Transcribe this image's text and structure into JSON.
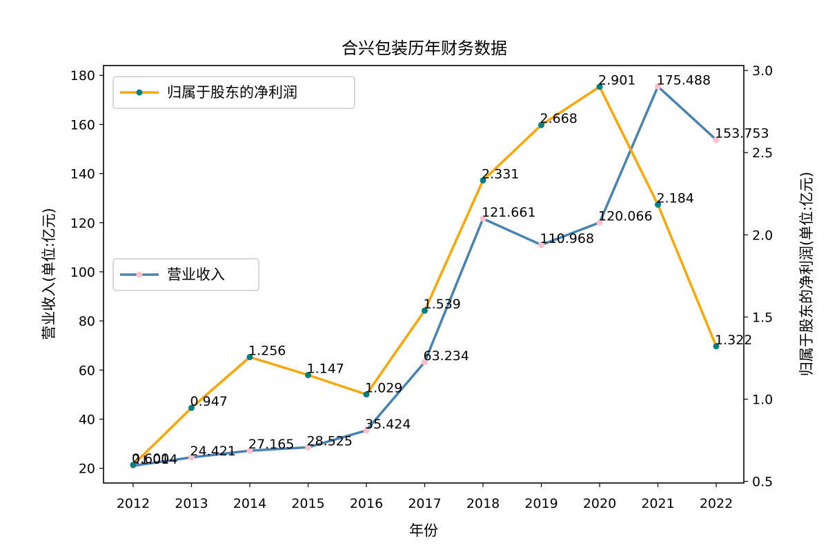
{
  "chart_data": {
    "type": "line",
    "title": "合兴包装历年财务数据",
    "xlabel": "年份",
    "ylabel_left": "营业收入(单位:亿元)",
    "ylabel_right": "归属于股东的净利润(单位:亿元)",
    "categories": [
      "2012",
      "2013",
      "2014",
      "2015",
      "2016",
      "2017",
      "2018",
      "2019",
      "2020",
      "2021",
      "2022"
    ],
    "ylim_left": [
      14,
      184
    ],
    "yticks_left": [
      20,
      40,
      60,
      80,
      100,
      120,
      140,
      160,
      180
    ],
    "ylim_right": [
      0.49,
      3.03
    ],
    "yticks_right": [
      0.5,
      1.0,
      1.5,
      2.0,
      2.5,
      3.0
    ],
    "ytick_labels_right": [
      "0.5",
      "1.0",
      "1.5",
      "2.0",
      "2.5",
      "3.0"
    ],
    "grid": false,
    "series": [
      {
        "name": "营业收入",
        "axis": "left",
        "color": "#4682b4",
        "marker_color": "#ffc0cb",
        "values": [
          21.014,
          24.421,
          27.165,
          28.525,
          35.424,
          63.234,
          121.661,
          110.968,
          120.066,
          175.488,
          153.753
        ],
        "labels": [
          "21.014",
          "24.421",
          "27.165",
          "28.525",
          "35.424",
          "63.234",
          "121.661",
          "110.968",
          "120.066",
          "175.488",
          "153.753"
        ],
        "legend_position": "center-left"
      },
      {
        "name": "归属于股东的净利润",
        "axis": "right",
        "color": "#ffa500",
        "marker_color": "#008080",
        "values": [
          0.6,
          0.947,
          1.256,
          1.147,
          1.029,
          1.539,
          2.331,
          2.668,
          2.901,
          2.184,
          1.322
        ],
        "labels": [
          "0.600",
          "0.947",
          "1.256",
          "1.147",
          "1.029",
          "1.539",
          "2.331",
          "2.668",
          "2.901",
          "2.184",
          "1.322"
        ],
        "legend_position": "top-left"
      }
    ]
  }
}
